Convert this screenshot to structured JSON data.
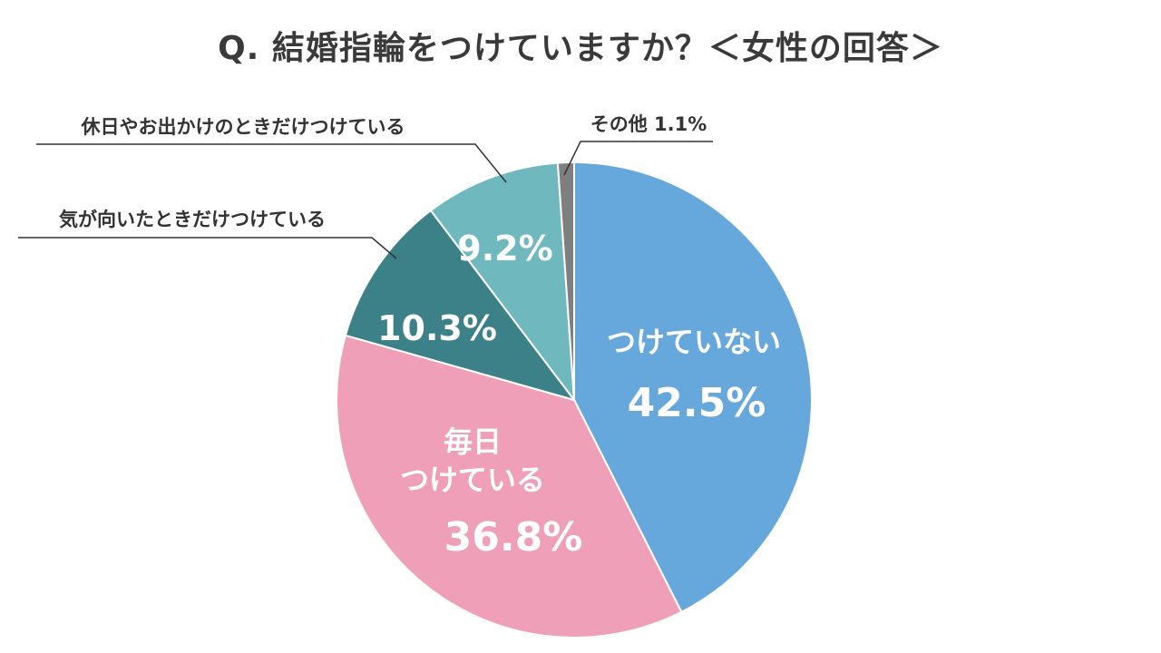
{
  "chart_data": {
    "type": "pie",
    "title": "Q. 結婚指輪をつけていますか？＜女性の回答＞",
    "slices": [
      {
        "label": "つけていない",
        "value": 42.5,
        "value_label": "42.5%",
        "color": "#67A8DC"
      },
      {
        "label": "毎日つけている",
        "label_lines": [
          "毎日",
          "つけている"
        ],
        "value": 36.8,
        "value_label": "36.8%",
        "color": "#EF9FB8"
      },
      {
        "label": "気が向いたときだけつけている",
        "value": 10.3,
        "value_label": "10.3%",
        "color": "#3C8187"
      },
      {
        "label": "休日やお出かけのときだけつけている",
        "value": 9.2,
        "value_label": "9.2%",
        "color": "#6FB8BE"
      },
      {
        "label": "その他",
        "value": 1.1,
        "value_label": "その他 1.1%",
        "color": "#7F7F7F"
      }
    ],
    "start": "12 o'clock",
    "direction": "clockwise"
  }
}
